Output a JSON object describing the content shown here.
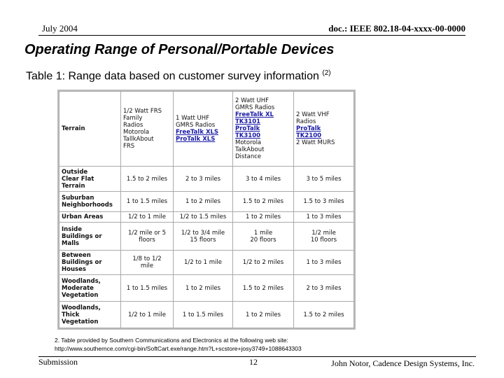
{
  "header": {
    "date": "July 2004",
    "doc": "doc.: IEEE 802.18-04-xxxx-00-0000"
  },
  "title": "Operating Range of Personal/Portable Devices",
  "subtitle": {
    "text": "Table 1: Range data based on customer survey information",
    "note": "(2)"
  },
  "table": {
    "header": [
      [
        "Terrain"
      ],
      [
        "1/2 Watt FRS",
        "Family",
        "Radios",
        "Motorola",
        "TallkAbout",
        "FRS"
      ],
      [
        "1 Watt UHF",
        "GMRS Radios",
        {
          "text": "FreeTalk XLS",
          "link": true
        },
        {
          "text": "ProTalk XLS",
          "link": true
        }
      ],
      [
        "2 Watt UHF",
        "GMRS Radios",
        {
          "text": "FreeTalk XL",
          "link": true
        },
        {
          "text": "TK3101",
          "link": true
        },
        {
          "text": "ProTalk",
          "link": true
        },
        {
          "text": "TK3100",
          "link": true
        },
        "Motorola",
        "TalkAbout",
        "Distance"
      ],
      [
        "2 Watt VHF",
        "Radios",
        {
          "text": "ProTalk",
          "link": true
        },
        {
          "text": "TK2100",
          "link": true
        },
        "2 Watt MURS"
      ]
    ],
    "rows": [
      [
        [
          "Outside",
          "Clear Flat",
          "Terrain"
        ],
        [
          "1.5 to 2 miles"
        ],
        [
          "2 to 3 miles"
        ],
        [
          "3 to 4 miles"
        ],
        [
          "3 to 5 miles"
        ]
      ],
      [
        [
          "Suburban",
          "Neighborhoods"
        ],
        [
          "1 to 1.5 miles"
        ],
        [
          "1 to 2 miles"
        ],
        [
          "1.5 to 2 miles"
        ],
        [
          "1.5 to 3 miles"
        ]
      ],
      [
        [
          "Urban Areas"
        ],
        [
          "1/2 to 1 mile"
        ],
        [
          "1/2 to 1.5 miles"
        ],
        [
          "1 to 2 miles"
        ],
        [
          "1 to 3 miles"
        ]
      ],
      [
        [
          "Inside",
          "Buildings or",
          "Malls"
        ],
        [
          "1/2 mile or 5",
          "floors"
        ],
        [
          "1/2 to 3/4 mile",
          "15 floors"
        ],
        [
          "1 mile",
          "20 floors"
        ],
        [
          "1/2 mile",
          "10 floors"
        ]
      ],
      [
        [
          "Between",
          "Buildings or",
          "Houses"
        ],
        [
          "1/8 to 1/2",
          "mile"
        ],
        [
          "1/2 to 1 mile"
        ],
        [
          "1/2 to 2 miles"
        ],
        [
          "1 to 3 miles"
        ]
      ],
      [
        [
          "Woodlands,",
          "Moderate",
          "Vegetation"
        ],
        [
          "1 to 1.5 miles"
        ],
        [
          "1 to 2 miles"
        ],
        [
          "1.5 to 2 miles"
        ],
        [
          "2 to 3 miles"
        ]
      ],
      [
        [
          "Woodlands,",
          "Thick",
          "Vegetation"
        ],
        [
          "1/2 to 1 mile"
        ],
        [
          "1 to 1.5 miles"
        ],
        [
          "1 to 2 miles"
        ],
        [
          "1.5 to 2 miles"
        ]
      ]
    ]
  },
  "footnote": [
    "2. Table provided by Southern Communications and Electronics at the following web site:",
    "http://www.southernce.com/cgi-bin/SoftCart.exe/range.htm?L+scstore+josy3749+1088643303"
  ],
  "footer": {
    "left": "Submission",
    "page": "12",
    "right": "John Notor, Cadence Design Systems, Inc."
  }
}
